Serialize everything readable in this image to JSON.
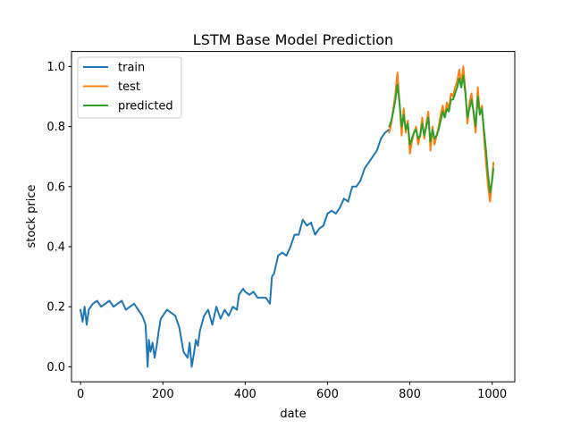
{
  "chart_data": {
    "type": "line",
    "title": "LSTM Base Model Prediction",
    "xlabel": "date",
    "ylabel": "stock price",
    "xlim": [
      -22,
      1055
    ],
    "ylim": [
      -0.05,
      1.05
    ],
    "xticks": [
      0,
      200,
      400,
      600,
      800,
      1000
    ],
    "xtick_labels": [
      "0",
      "200",
      "400",
      "600",
      "800",
      "1000"
    ],
    "yticks": [
      0.0,
      0.2,
      0.4,
      0.6,
      0.8,
      1.0
    ],
    "ytick_labels": [
      "0.0",
      "0.2",
      "0.4",
      "0.6",
      "0.8",
      "1.0"
    ],
    "grid": false,
    "legend_position": "upper-left",
    "series": [
      {
        "name": "train",
        "color": "#1f77b4",
        "x": [
          0,
          5,
          10,
          15,
          20,
          30,
          40,
          50,
          60,
          70,
          80,
          90,
          100,
          110,
          120,
          130,
          140,
          150,
          158,
          163,
          166,
          170,
          175,
          180,
          185,
          190,
          195,
          200,
          210,
          220,
          230,
          240,
          250,
          260,
          265,
          270,
          275,
          280,
          285,
          290,
          300,
          310,
          320,
          330,
          340,
          350,
          360,
          370,
          380,
          385,
          390,
          395,
          400,
          410,
          420,
          430,
          440,
          450,
          460,
          465,
          470,
          480,
          490,
          500,
          510,
          520,
          530,
          540,
          550,
          560,
          570,
          580,
          590,
          600,
          610,
          620,
          630,
          640,
          650,
          660,
          670,
          680,
          690,
          700,
          710,
          720,
          730,
          740,
          750
        ],
        "y": [
          0.19,
          0.15,
          0.2,
          0.14,
          0.19,
          0.21,
          0.22,
          0.2,
          0.21,
          0.22,
          0.2,
          0.21,
          0.22,
          0.19,
          0.2,
          0.21,
          0.19,
          0.17,
          0.14,
          0.0,
          0.09,
          0.05,
          0.08,
          0.03,
          0.07,
          0.12,
          0.16,
          0.17,
          0.19,
          0.18,
          0.17,
          0.13,
          0.05,
          0.03,
          0.08,
          0.0,
          0.04,
          0.09,
          0.07,
          0.12,
          0.17,
          0.19,
          0.14,
          0.2,
          0.16,
          0.19,
          0.17,
          0.2,
          0.19,
          0.24,
          0.25,
          0.26,
          0.25,
          0.24,
          0.25,
          0.23,
          0.23,
          0.23,
          0.21,
          0.3,
          0.31,
          0.37,
          0.38,
          0.37,
          0.4,
          0.44,
          0.44,
          0.49,
          0.47,
          0.48,
          0.44,
          0.46,
          0.47,
          0.51,
          0.52,
          0.51,
          0.53,
          0.56,
          0.55,
          0.6,
          0.6,
          0.62,
          0.66,
          0.68,
          0.7,
          0.72,
          0.76,
          0.78,
          0.79
        ]
      },
      {
        "name": "test",
        "color": "#ff7f0e",
        "x": [
          750,
          755,
          760,
          765,
          770,
          775,
          780,
          785,
          790,
          795,
          800,
          805,
          810,
          815,
          820,
          825,
          830,
          835,
          840,
          845,
          850,
          855,
          860,
          865,
          870,
          875,
          880,
          885,
          890,
          895,
          900,
          905,
          910,
          915,
          920,
          925,
          930,
          935,
          940,
          945,
          950,
          955,
          960,
          965,
          970,
          975,
          980,
          985,
          990,
          995,
          1000,
          1003
        ],
        "y": [
          0.78,
          0.81,
          0.86,
          0.91,
          0.98,
          0.88,
          0.77,
          0.86,
          0.78,
          0.82,
          0.71,
          0.75,
          0.78,
          0.8,
          0.74,
          0.77,
          0.83,
          0.76,
          0.81,
          0.85,
          0.72,
          0.8,
          0.74,
          0.77,
          0.8,
          0.84,
          0.87,
          0.83,
          0.88,
          0.86,
          0.91,
          0.9,
          0.93,
          0.95,
          0.99,
          0.94,
          1.0,
          0.92,
          0.81,
          0.88,
          0.91,
          0.84,
          0.78,
          0.93,
          0.84,
          0.87,
          0.77,
          0.68,
          0.6,
          0.55,
          0.63,
          0.68
        ]
      },
      {
        "name": "predicted",
        "color": "#2ca02c",
        "x": [
          750,
          755,
          760,
          765,
          770,
          775,
          780,
          785,
          790,
          795,
          800,
          805,
          810,
          815,
          820,
          825,
          830,
          835,
          840,
          845,
          850,
          855,
          860,
          865,
          870,
          875,
          880,
          885,
          890,
          895,
          900,
          905,
          910,
          915,
          920,
          925,
          930,
          935,
          940,
          945,
          950,
          955,
          960,
          965,
          970,
          975,
          980,
          985,
          990,
          995,
          1000,
          1003
        ],
        "y": [
          0.8,
          0.82,
          0.85,
          0.89,
          0.94,
          0.88,
          0.8,
          0.84,
          0.79,
          0.81,
          0.74,
          0.76,
          0.78,
          0.79,
          0.76,
          0.77,
          0.81,
          0.77,
          0.8,
          0.83,
          0.75,
          0.79,
          0.76,
          0.77,
          0.79,
          0.82,
          0.85,
          0.83,
          0.86,
          0.85,
          0.89,
          0.89,
          0.91,
          0.93,
          0.96,
          0.93,
          0.97,
          0.91,
          0.83,
          0.86,
          0.89,
          0.85,
          0.8,
          0.9,
          0.84,
          0.86,
          0.79,
          0.72,
          0.64,
          0.58,
          0.62,
          0.66
        ]
      }
    ]
  }
}
